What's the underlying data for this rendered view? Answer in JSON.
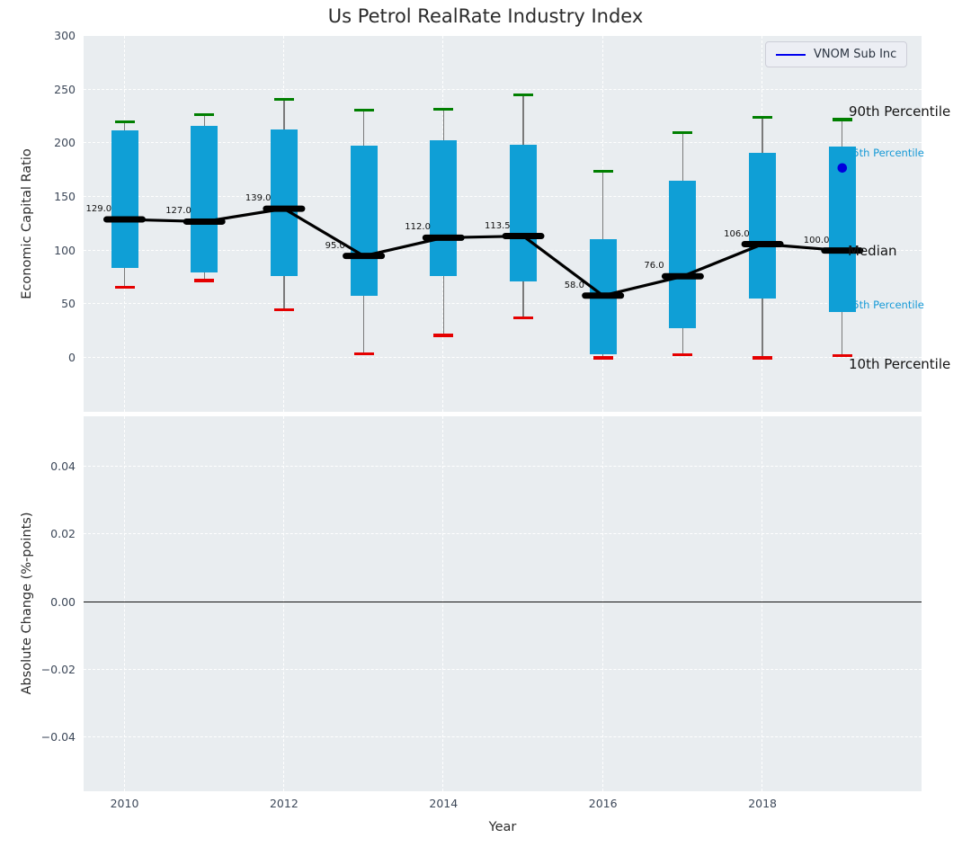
{
  "title": "Us Petrol RealRate Industry Index",
  "legend": {
    "label": "VNOM Sub Inc"
  },
  "right_labels": {
    "p90": "90th Percentile",
    "p75": "75th Percentile",
    "median": "Median",
    "p25": "25th Percentile",
    "p10": "10th Percentile"
  },
  "colors": {
    "box_fill": "#0f9fd6",
    "whisker": "#7a7a7a",
    "cap_high": "#007f00",
    "cap_low": "#e50000",
    "median_line": "#000000",
    "vnom": "#0000dd",
    "axes_bg": "#e9edf0",
    "grid": "#ffffff",
    "tick_label": "#3d4859",
    "blue_label": "#1599d6"
  },
  "chart_data": {
    "type": "boxplot",
    "title": "Us Petrol RealRate Industry Index",
    "xlabel": "Year",
    "x_tick_labels": [
      "2010",
      "2012",
      "2014",
      "2016",
      "2018"
    ],
    "x_tick_values": [
      2010,
      2012,
      2014,
      2016,
      2018
    ],
    "grid": true,
    "subplots": [
      {
        "name": "economic-capital-ratio",
        "ylabel": "Economic Capital Ratio",
        "ylim": [
          -50,
          300
        ],
        "y_tick_labels": [
          "300",
          "250",
          "200",
          "150",
          "100",
          "50",
          "0"
        ],
        "y_tick_values": [
          300,
          250,
          200,
          150,
          100,
          50,
          0
        ],
        "legend": {
          "label": "VNOM Sub Inc",
          "position": "upper right"
        },
        "boxes": [
          {
            "year": 2010,
            "p10": 66,
            "p25": 84,
            "median": 129,
            "p75": 212,
            "p90": 220,
            "median_label": "129.0"
          },
          {
            "year": 2011,
            "p10": 72,
            "p25": 80,
            "median": 127,
            "p75": 216,
            "p90": 227,
            "median_label": "127.0"
          },
          {
            "year": 2012,
            "p10": 45,
            "p25": 76,
            "median": 139,
            "p75": 213,
            "p90": 241,
            "median_label": "139.0"
          },
          {
            "year": 2013,
            "p10": 4,
            "p25": 58,
            "median": 95,
            "p75": 198,
            "p90": 231,
            "median_label": "95.0"
          },
          {
            "year": 2014,
            "p10": 21,
            "p25": 76,
            "median": 112,
            "p75": 203,
            "p90": 232,
            "median_label": "112.0"
          },
          {
            "year": 2015,
            "p10": 37,
            "p25": 71,
            "median": 113.5,
            "p75": 199,
            "p90": 245,
            "median_label": "113.5"
          },
          {
            "year": 2016,
            "p10": 0,
            "p25": 3,
            "median": 58,
            "p75": 111,
            "p90": 174,
            "median_label": "58.0"
          },
          {
            "year": 2017,
            "p10": 3,
            "p25": 28,
            "median": 76,
            "p75": 165,
            "p90": 210,
            "median_label": "76.0"
          },
          {
            "year": 2018,
            "p10": 0,
            "p25": 55,
            "median": 106,
            "p75": 191,
            "p90": 224,
            "median_label": "106.0"
          },
          {
            "year": 2019,
            "p10": 2,
            "p25": 43,
            "median": 100,
            "p75": 197,
            "p90": 222,
            "median_label": "100.0"
          }
        ],
        "median_line_values": [
          129,
          127,
          139,
          95,
          112,
          113.5,
          58,
          76,
          106,
          100
        ],
        "vnom_point": {
          "year": 2019,
          "value": 177
        }
      },
      {
        "name": "absolute-change",
        "ylabel": "Absolute Change (%-points)",
        "ylim": [
          -0.056,
          0.056
        ],
        "y_tick_labels": [
          "0.04",
          "0.02",
          "0.00",
          "−0.02",
          "−0.04"
        ],
        "y_tick_values": [
          0.04,
          0.02,
          0,
          -0.02,
          -0.04
        ],
        "zero_line": 0,
        "data": []
      }
    ]
  }
}
